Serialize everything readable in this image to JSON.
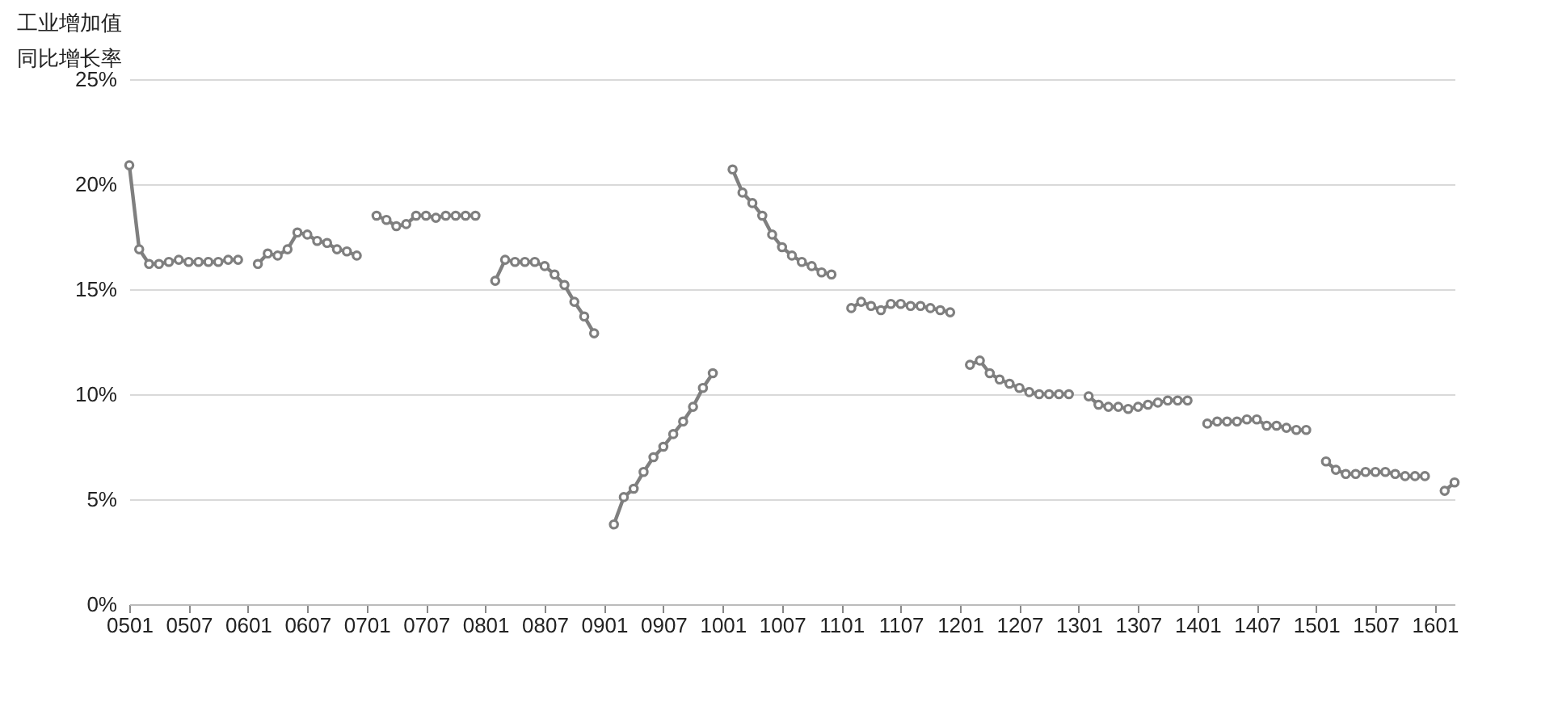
{
  "chart_data": {
    "type": "line",
    "ylabel": "工业增加值同比增长率",
    "categories": [
      "0501",
      null,
      null,
      null,
      null,
      null,
      "0507",
      null,
      null,
      null,
      null,
      null,
      "0601",
      null,
      null,
      null,
      null,
      null,
      "0607",
      null,
      null,
      null,
      null,
      null,
      "0701",
      null,
      null,
      null,
      null,
      null,
      "0707",
      null,
      null,
      null,
      null,
      null,
      "0801",
      null,
      null,
      null,
      null,
      null,
      "0807",
      null,
      null,
      null,
      null,
      null,
      "0901",
      null,
      null,
      null,
      null,
      null,
      "0907",
      null,
      null,
      null,
      null,
      null,
      "1001",
      null,
      null,
      null,
      null,
      null,
      "1007",
      null,
      null,
      null,
      null,
      null,
      "1101",
      null,
      null,
      null,
      null,
      null,
      "1107",
      null,
      null,
      null,
      null,
      null,
      "1201",
      null,
      null,
      null,
      null,
      null,
      "1207",
      null,
      null,
      null,
      null,
      null,
      "1301",
      null,
      null,
      null,
      null,
      null,
      "1307",
      null,
      null,
      null,
      null,
      null,
      "1401",
      null,
      null,
      null,
      null,
      null,
      "1407",
      null,
      null,
      null,
      null,
      null,
      "1501",
      null,
      null,
      null,
      null,
      null,
      "1507",
      null,
      null,
      null,
      null,
      null,
      "1601",
      null,
      null
    ],
    "series": [
      {
        "color": "#7f7f7f",
        "values": [
          20.9,
          16.9,
          16.2,
          16.2,
          16.3,
          16.4,
          16.3,
          16.3,
          16.3,
          16.3,
          16.4,
          16.4,
          null,
          16.2,
          16.7,
          16.6,
          16.9,
          17.7,
          17.6,
          17.3,
          17.2,
          16.9,
          16.8,
          16.6,
          null,
          18.5,
          18.3,
          18.0,
          18.1,
          18.5,
          18.5,
          18.4,
          18.5,
          18.5,
          18.5,
          18.5,
          null,
          15.4,
          16.4,
          16.3,
          16.3,
          16.3,
          16.1,
          15.7,
          15.2,
          14.4,
          13.7,
          12.9,
          null,
          3.8,
          5.1,
          5.5,
          6.3,
          7.0,
          7.5,
          8.1,
          8.7,
          9.4,
          10.3,
          11.0,
          null,
          20.7,
          19.6,
          19.1,
          18.5,
          17.6,
          17.0,
          16.6,
          16.3,
          16.1,
          15.8,
          15.7,
          null,
          14.1,
          14.4,
          14.2,
          14.0,
          14.3,
          14.3,
          14.2,
          14.2,
          14.1,
          14.0,
          13.9,
          null,
          11.4,
          11.6,
          11.0,
          10.7,
          10.5,
          10.3,
          10.1,
          10.0,
          10.0,
          10.0,
          10.0,
          null,
          9.9,
          9.5,
          9.4,
          9.4,
          9.3,
          9.4,
          9.5,
          9.6,
          9.7,
          9.7,
          9.7,
          null,
          8.6,
          8.7,
          8.7,
          8.7,
          8.8,
          8.8,
          8.5,
          8.5,
          8.4,
          8.3,
          8.3,
          null,
          6.8,
          6.4,
          6.2,
          6.2,
          6.3,
          6.3,
          6.3,
          6.2,
          6.1,
          6.1,
          6.1,
          null,
          5.4,
          5.8
        ]
      }
    ],
    "ylim": [
      0,
      25
    ],
    "yticks": [
      {
        "value": 0,
        "label": "0%"
      },
      {
        "value": 5,
        "label": "5%"
      },
      {
        "value": 10,
        "label": "10%"
      },
      {
        "value": 15,
        "label": "15%"
      },
      {
        "value": 20,
        "label": "20%"
      },
      {
        "value": 25,
        "label": "25%"
      }
    ],
    "grid": "y",
    "marker": "circle",
    "line_style": "solid"
  }
}
